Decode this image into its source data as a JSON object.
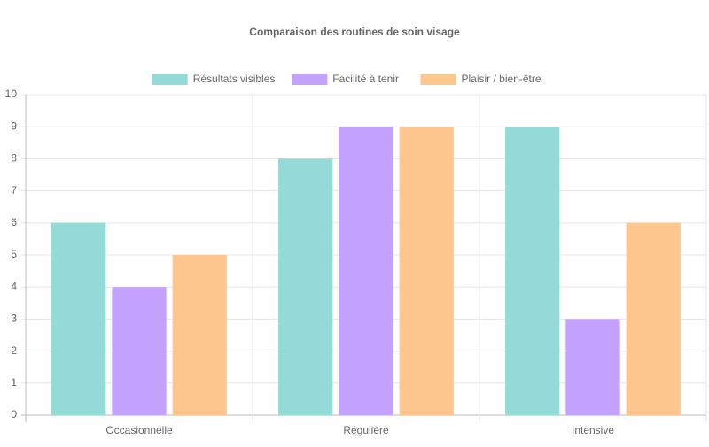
{
  "chart_data": {
    "type": "bar",
    "title": "Comparaison des routines de soin visage",
    "categories": [
      "Occasionnelle",
      "Régulière",
      "Intensive"
    ],
    "series": [
      {
        "name": "Résultats visibles",
        "color": "#94dbd8",
        "values": [
          6,
          8,
          9
        ]
      },
      {
        "name": "Facilité à tenir",
        "color": "#c2a2fc",
        "values": [
          4,
          9,
          3
        ]
      },
      {
        "name": "Plaisir / bien-être",
        "color": "#fec68f",
        "values": [
          5,
          9,
          6
        ]
      }
    ],
    "ylim": [
      0,
      10
    ],
    "yticks": [
      0,
      1,
      2,
      3,
      4,
      5,
      6,
      7,
      8,
      9,
      10
    ],
    "grid": true,
    "legend": "top"
  }
}
